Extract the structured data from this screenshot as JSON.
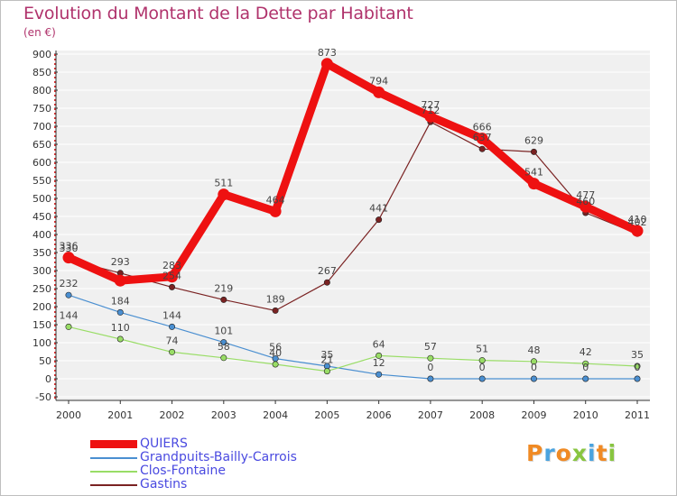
{
  "chart_data": {
    "type": "line",
    "title": "Evolution du Montant de la Dette par Habitant",
    "subtitle": "(en €)",
    "categories": [
      "2000",
      "2001",
      "2002",
      "2003",
      "2004",
      "2005",
      "2006",
      "2007",
      "2008",
      "2009",
      "2010",
      "2011"
    ],
    "ylim": [
      -50,
      900
    ],
    "yticks": [
      -50,
      0,
      50,
      100,
      150,
      200,
      250,
      300,
      350,
      400,
      450,
      500,
      550,
      600,
      650,
      700,
      750,
      800,
      850,
      900
    ],
    "ytick_labels": [
      "-50",
      "0",
      "50",
      "100",
      "150",
      "200",
      "250",
      "300",
      "350",
      "400",
      "450",
      "500",
      "550",
      "600",
      "650",
      "700",
      "750",
      "800",
      "850",
      "900"
    ],
    "grid": "horizontal",
    "legend_position": "bottom-left",
    "series": [
      {
        "name": "QUIERS",
        "color": "#ee1111",
        "values": [
          336,
          272,
          283,
          511,
          464,
          873,
          794,
          727,
          666,
          541,
          477,
          410
        ],
        "labels": [
          "336",
          "",
          "283",
          "511",
          "464",
          "873",
          "794",
          "727",
          "666",
          "541",
          "477",
          "410"
        ]
      },
      {
        "name": "Grandpuits-Bailly-Carrois",
        "color": "#4a8fd1",
        "values": [
          232,
          184,
          144,
          101,
          56,
          35,
          12,
          0,
          0,
          0,
          0,
          0
        ],
        "labels": [
          "232",
          "184",
          "144",
          "101",
          "56",
          "35",
          "12",
          "0",
          "0",
          "0",
          "0",
          "0"
        ]
      },
      {
        "name": "Clos-Fontaine",
        "color": "#99dd66",
        "values": [
          144,
          110,
          74,
          58,
          40,
          21,
          64,
          57,
          51,
          48,
          42,
          35
        ],
        "labels": [
          "144",
          "110",
          "74",
          "58",
          "40",
          "21",
          "64",
          "57",
          "51",
          "48",
          "42",
          "35"
        ]
      },
      {
        "name": "Gastins",
        "color": "#7a2222",
        "values": [
          330,
          293,
          254,
          219,
          189,
          267,
          441,
          712,
          637,
          629,
          460,
          402
        ],
        "labels": [
          "330",
          "293",
          "254",
          "219",
          "189",
          "267",
          "441",
          "712",
          "637",
          "629",
          "460",
          "402"
        ]
      }
    ]
  },
  "logo": {
    "letters": [
      "P",
      "r",
      "o",
      "x",
      "i",
      "t",
      "i"
    ],
    "colors": [
      "#f08a24",
      "#4aa3df",
      "#f08a24",
      "#88c540",
      "#4aa3df",
      "#f08a24",
      "#88c540"
    ]
  }
}
